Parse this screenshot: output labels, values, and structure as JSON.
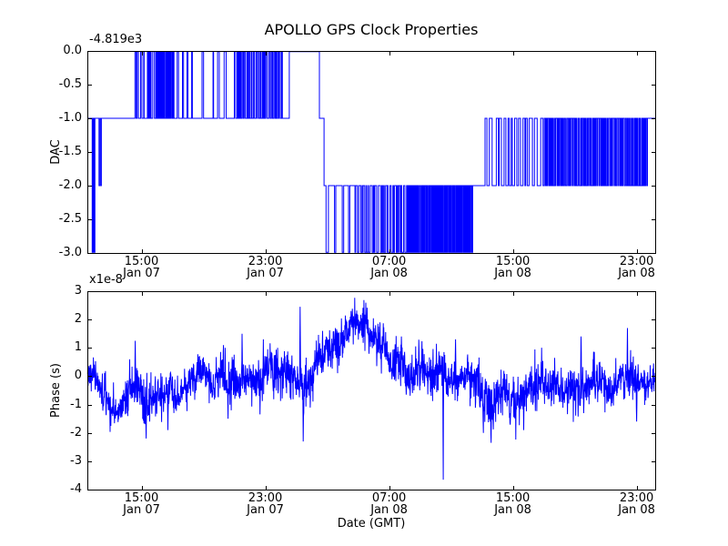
{
  "figure": {
    "background_color": "#ffffff",
    "line_color": "#0000ff",
    "axis_color": "#000000"
  },
  "chart_data": [
    {
      "type": "line",
      "position": "top",
      "title": "APOLLO GPS Clock Properties",
      "ylabel": "DAC",
      "xlabel": "",
      "y_offset_label": "-4.819e3",
      "ylim": [
        -3.0,
        0.0
      ],
      "ytick_values": [
        0,
        -0.5,
        -1,
        -1.5,
        -2,
        -2.5,
        -3
      ],
      "ytick_labels": [
        "0.0",
        "-0.5",
        "-1.0",
        "-1.5",
        "-2.0",
        "-2.5",
        "-3.0"
      ],
      "x_range_hours": [
        0,
        36.7
      ],
      "xtick_hours": [
        3.5,
        11.5,
        19.5,
        27.5,
        35.5
      ],
      "xtick_labels": [
        [
          "15:00",
          "Jan 07"
        ],
        [
          "23:00",
          "Jan 07"
        ],
        [
          "07:00",
          "Jan 08"
        ],
        [
          "15:00",
          "Jan 08"
        ],
        [
          "23:00",
          "Jan 08"
        ]
      ],
      "grid": false,
      "legend": false,
      "series": [
        {
          "name": "DAC",
          "color": "#0000ff",
          "noise_seed": 13,
          "step_segments": [
            {
              "mode": "flat",
              "t0": 0.0,
              "t1": 0.25,
              "level": -1
            },
            {
              "mode": "toggle",
              "t0": 0.25,
              "t1": 0.5,
              "hi": -1,
              "lo": -3,
              "rate": 18,
              "duty": 0.7
            },
            {
              "mode": "flat",
              "t0": 0.5,
              "t1": 0.75,
              "level": -1
            },
            {
              "mode": "toggle",
              "t0": 0.75,
              "t1": 0.95,
              "hi": -1,
              "lo": -2,
              "rate": 14,
              "duty": 0.65
            },
            {
              "mode": "flat",
              "t0": 0.95,
              "t1": 2.9,
              "level": -1
            },
            {
              "mode": "toggle",
              "t0": 2.9,
              "t1": 4.4,
              "hi": 0,
              "lo": -1,
              "rate": 9,
              "duty": 0.3
            },
            {
              "mode": "toggle",
              "t0": 4.4,
              "t1": 5.6,
              "hi": 0,
              "lo": -1,
              "rate": 26,
              "duty": 0.5
            },
            {
              "mode": "toggle",
              "t0": 5.6,
              "t1": 6.9,
              "hi": 0,
              "lo": -1,
              "rate": 9,
              "duty": 0.3
            },
            {
              "mode": "toggle",
              "t0": 6.9,
              "t1": 9.5,
              "hi": 0,
              "lo": -1,
              "rate": 2.5,
              "duty": 0.1
            },
            {
              "mode": "toggle",
              "t0": 9.5,
              "t1": 12.7,
              "hi": 0,
              "lo": -1,
              "rate": 18,
              "duty": 0.45
            },
            {
              "mode": "flat",
              "t0": 12.7,
              "t1": 13.05,
              "level": -1
            },
            {
              "mode": "flat",
              "t0": 13.05,
              "t1": 15.0,
              "level": 0
            },
            {
              "mode": "flat",
              "t0": 15.0,
              "t1": 15.3,
              "level": -1
            },
            {
              "mode": "toggle",
              "t0": 15.3,
              "t1": 17.3,
              "hi": -2,
              "lo": -3,
              "rate": 5,
              "duty": 0.7
            },
            {
              "mode": "toggle",
              "t0": 17.3,
              "t1": 20.6,
              "hi": -2,
              "lo": -3,
              "rate": 13,
              "duty": 0.55
            },
            {
              "mode": "toggle",
              "t0": 20.6,
              "t1": 24.9,
              "hi": -2,
              "lo": -3,
              "rate": 26,
              "duty": 0.5
            },
            {
              "mode": "flat",
              "t0": 24.9,
              "t1": 25.7,
              "level": -2
            },
            {
              "mode": "toggle",
              "t0": 25.7,
              "t1": 29.6,
              "hi": -1,
              "lo": -2,
              "rate": 7,
              "duty": 0.45
            },
            {
              "mode": "toggle",
              "t0": 29.6,
              "t1": 36.2,
              "hi": -1,
              "lo": -2,
              "rate": 20,
              "duty": 0.5
            },
            {
              "mode": "flat",
              "t0": 36.2,
              "t1": 36.7,
              "level": -1
            }
          ]
        }
      ]
    },
    {
      "type": "line",
      "position": "bottom",
      "title": "",
      "ylabel": "Phase (s)",
      "xlabel": "Date (GMT)",
      "y_multiplier_label": "x1e-8",
      "ylim": [
        -4,
        3
      ],
      "ytick_values": [
        3,
        2,
        1,
        0,
        -1,
        -2,
        -3,
        -4
      ],
      "ytick_labels": [
        "3",
        "2",
        "1",
        "0",
        "-1",
        "-2",
        "-3",
        "-4"
      ],
      "x_range_hours": [
        0,
        36.7
      ],
      "xtick_hours": [
        3.5,
        11.5,
        19.5,
        27.5,
        35.5
      ],
      "xtick_labels": [
        [
          "15:00",
          "Jan 07"
        ],
        [
          "23:00",
          "Jan 07"
        ],
        [
          "07:00",
          "Jan 08"
        ],
        [
          "15:00",
          "Jan 08"
        ],
        [
          "23:00",
          "Jan 08"
        ]
      ],
      "grid": false,
      "legend": false,
      "series": [
        {
          "name": "Phase",
          "color": "#0000ff",
          "noise_seed": 7,
          "points_per_hour": 64,
          "envelope": [
            [
              0.0,
              0.0,
              0.7
            ],
            [
              1.2,
              -0.6,
              0.8
            ],
            [
              1.8,
              -0.9,
              0.7
            ],
            [
              3.0,
              -0.4,
              0.9
            ],
            [
              3.6,
              -0.7,
              1.1
            ],
            [
              4.5,
              -0.8,
              0.9
            ],
            [
              6.0,
              -0.5,
              0.8
            ],
            [
              7.5,
              -0.2,
              0.8
            ],
            [
              9.0,
              -0.2,
              0.9
            ],
            [
              10.5,
              -0.1,
              0.9
            ],
            [
              12.0,
              0.1,
              0.9
            ],
            [
              13.0,
              0.2,
              1.0
            ],
            [
              13.9,
              0.2,
              1.0
            ],
            [
              14.8,
              0.5,
              0.9
            ],
            [
              15.8,
              0.9,
              0.9
            ],
            [
              16.6,
              1.5,
              0.8
            ],
            [
              17.1,
              1.9,
              0.7
            ],
            [
              17.7,
              1.6,
              0.8
            ],
            [
              18.6,
              1.2,
              0.8
            ],
            [
              19.6,
              0.8,
              0.9
            ],
            [
              20.6,
              0.5,
              0.9
            ],
            [
              21.6,
              0.3,
              0.9
            ],
            [
              22.6,
              0.1,
              0.9
            ],
            [
              23.6,
              0.0,
              0.9
            ],
            [
              24.6,
              -0.1,
              0.9
            ],
            [
              25.4,
              -0.6,
              1.0
            ],
            [
              26.2,
              -1.0,
              1.1
            ],
            [
              27.0,
              -0.9,
              1.0
            ],
            [
              27.8,
              -0.6,
              1.0
            ],
            [
              29.0,
              -0.3,
              0.9
            ],
            [
              30.5,
              -0.2,
              0.9
            ],
            [
              32.0,
              -0.3,
              1.0
            ],
            [
              33.5,
              -0.2,
              0.9
            ],
            [
              35.0,
              -0.3,
              0.9
            ],
            [
              36.7,
              -0.1,
              0.8
            ]
          ],
          "spikes": [
            [
              2.0,
              -1.5
            ],
            [
              3.1,
              1.25
            ],
            [
              3.8,
              -2.2
            ],
            [
              5.2,
              -1.9
            ],
            [
              8.8,
              1.1
            ],
            [
              9.1,
              -1.5
            ],
            [
              10.0,
              1.5
            ],
            [
              12.3,
              1.0
            ],
            [
              13.75,
              2.45
            ],
            [
              13.95,
              -2.3
            ],
            [
              15.2,
              1.6
            ],
            [
              17.05,
              2.3
            ],
            [
              18.9,
              1.9
            ],
            [
              20.3,
              1.4
            ],
            [
              23.0,
              -3.65
            ],
            [
              23.8,
              1.3
            ],
            [
              25.6,
              -2.0
            ],
            [
              26.1,
              -2.35
            ],
            [
              28.2,
              -1.9
            ],
            [
              31.9,
              1.4
            ],
            [
              34.9,
              1.7
            ],
            [
              35.5,
              -1.6
            ]
          ]
        }
      ]
    }
  ]
}
